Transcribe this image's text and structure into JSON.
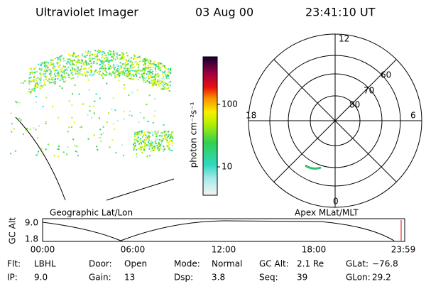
{
  "header": {
    "title": "Ultraviolet Imager",
    "date": "03 Aug 00",
    "time": "23:41:10 UT"
  },
  "colorbar": {
    "label": "photon cm⁻²s⁻¹",
    "ticks": [
      "100",
      "10"
    ]
  },
  "polar": {
    "mlt_labels": [
      "12",
      "18",
      "6",
      "0"
    ],
    "lat_labels": [
      "60",
      "70",
      "80"
    ]
  },
  "timeline": {
    "left_title": "Geographic Lat/Lon",
    "right_title": "Apex MLat/MLT",
    "y_label": "GC Alt",
    "y_ticks": [
      "9.0",
      "1.8"
    ],
    "x_ticks": [
      "00:00",
      "06:00",
      "12:00",
      "18:00",
      "23:59"
    ]
  },
  "footer": {
    "rows": [
      [
        {
          "label": "Flt:",
          "value": "LBHL"
        },
        {
          "label": "Door:",
          "value": "Open"
        },
        {
          "label": "Mode:",
          "value": "Normal"
        },
        {
          "label": "GC Alt:",
          "value": "2.1 Re"
        },
        {
          "label": "GLat:",
          "value": "−76.8"
        }
      ],
      [
        {
          "label": "IP:",
          "value": "9.0"
        },
        {
          "label": "Gain:",
          "value": "13"
        },
        {
          "label": "Dsp:",
          "value": "3.8"
        },
        {
          "label": "Seq:",
          "value": "39"
        },
        {
          "label": "GLon:",
          "value": "29.2"
        }
      ]
    ]
  }
}
